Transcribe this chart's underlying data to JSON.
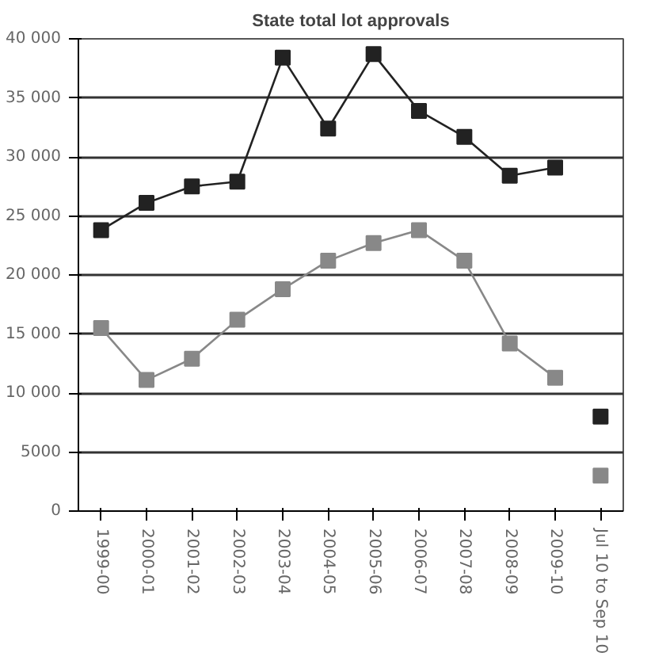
{
  "chart_data": {
    "type": "line",
    "title": "State total lot approvals",
    "categories": [
      "1999-00",
      "2000-01",
      "2001-02",
      "2002-03",
      "2003-04",
      "2004-05",
      "2005-06",
      "2006-07",
      "2007-08",
      "2008-09",
      "2009-10",
      "Jul 10 to Sep 10"
    ],
    "series": [
      {
        "color": "#222222",
        "values": [
          23800,
          26100,
          27500,
          27900,
          38400,
          32400,
          38700,
          33900,
          31700,
          28400,
          29100,
          null
        ]
      },
      {
        "color": "#888888",
        "values": [
          15500,
          11100,
          12900,
          16200,
          18800,
          21200,
          22700,
          23800,
          21200,
          14200,
          11300,
          null
        ]
      },
      {
        "type": "scatter",
        "color": "#222222",
        "values": [
          null,
          null,
          null,
          null,
          null,
          null,
          null,
          null,
          null,
          null,
          null,
          8000
        ]
      },
      {
        "type": "scatter",
        "color": "#888888",
        "values": [
          null,
          null,
          null,
          null,
          null,
          null,
          null,
          null,
          null,
          null,
          null,
          3000
        ]
      }
    ],
    "ylim": [
      0,
      40000
    ],
    "yticks": [
      0,
      5000,
      {
        "value": 10000,
        "label": "10 000"
      },
      {
        "value": 15000,
        "label": "15 000"
      },
      {
        "value": 20000,
        "label": "20 000"
      },
      {
        "value": 25000,
        "label": "25 000"
      },
      {
        "value": 30000,
        "label": "30 000"
      },
      {
        "value": 35000,
        "label": "35 000"
      },
      {
        "value": 40000,
        "label": "40 000"
      }
    ],
    "grid": "y",
    "marker": "square",
    "line_style": "solid"
  }
}
